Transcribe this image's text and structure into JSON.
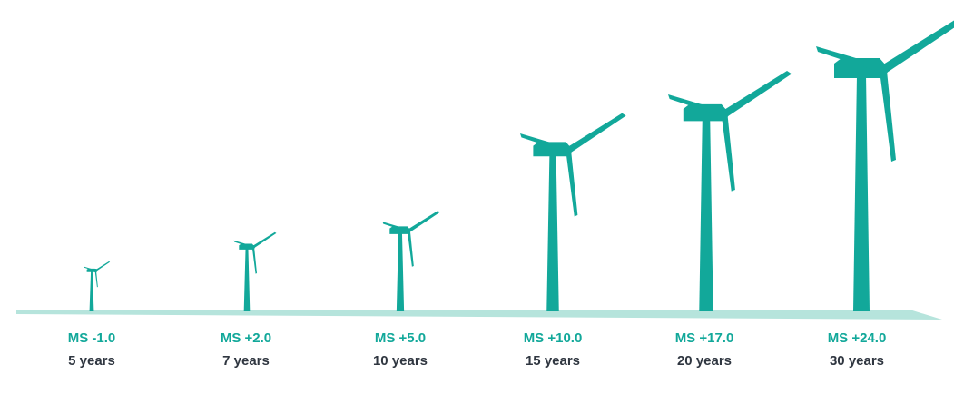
{
  "colors": {
    "turbine": "#12a89a",
    "ground": "#b6e4dc",
    "ms_text": "#12a89a",
    "years_text": "#2f3640"
  },
  "turbines": [
    {
      "ms": "MS -1.0",
      "years": "5 years"
    },
    {
      "ms": "MS +2.0",
      "years": "7 years"
    },
    {
      "ms": "MS +5.0",
      "years": "10 years"
    },
    {
      "ms": "MS +10.0",
      "years": "15 years"
    },
    {
      "ms": "MS +17.0",
      "years": "20 years"
    },
    {
      "ms": "MS +24.0",
      "years": "30 years"
    }
  ]
}
